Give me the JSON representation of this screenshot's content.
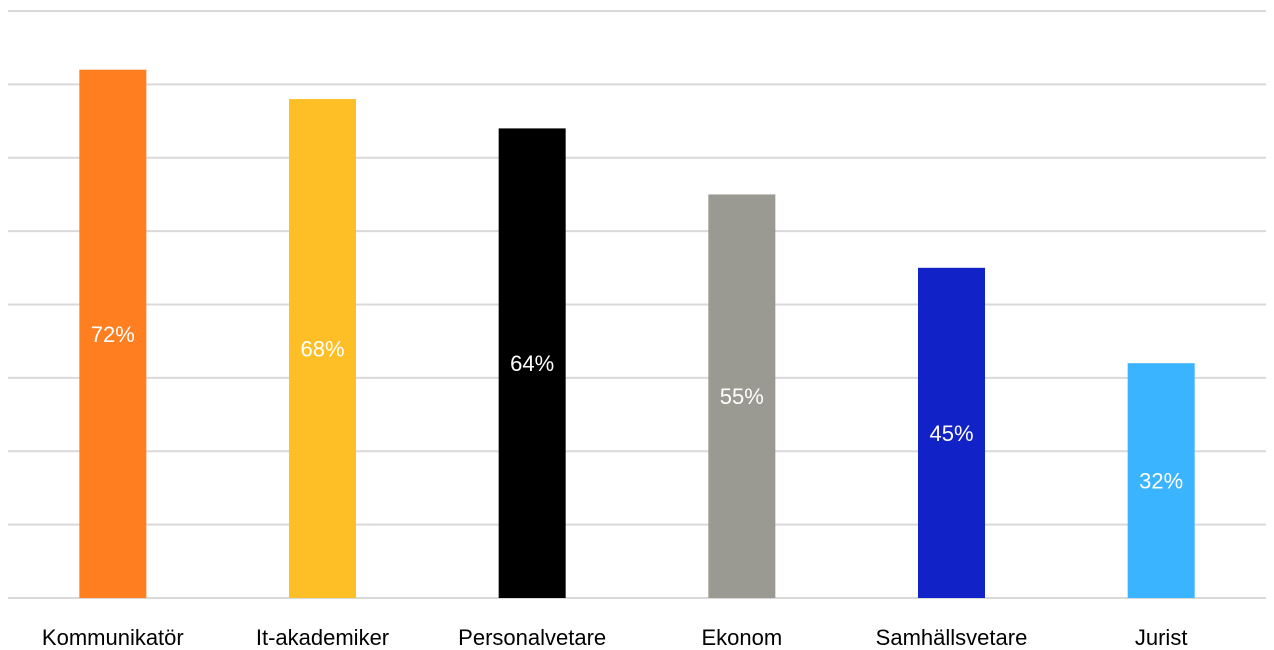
{
  "chart_data": {
    "type": "bar",
    "categories": [
      "Kommunikatör",
      "It-akademiker",
      "Personalvetare",
      "Ekonom",
      "Samhällsvetare",
      "Jurist"
    ],
    "values": [
      72,
      68,
      64,
      55,
      45,
      32
    ],
    "value_labels": [
      "72%",
      "68%",
      "64%",
      "55%",
      "45%",
      "32%"
    ],
    "bar_colors": [
      "#ff7f20",
      "#fdbf25",
      "#000000",
      "#9a9a92",
      "#1122c6",
      "#3ab4ff"
    ],
    "ylim": [
      0,
      80
    ],
    "grid": true,
    "title": "",
    "xlabel": "",
    "ylabel": ""
  }
}
